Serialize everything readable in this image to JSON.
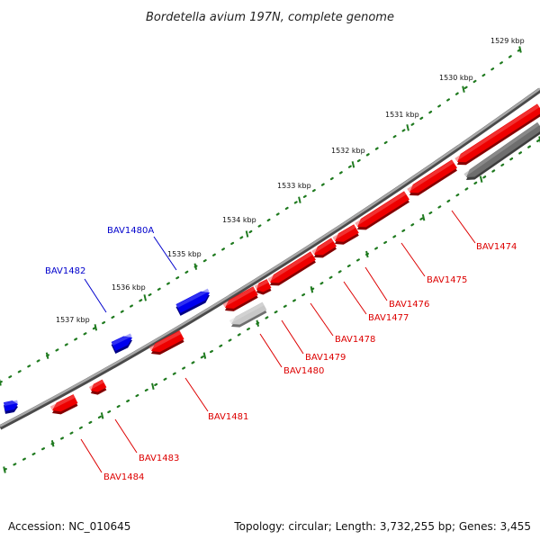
{
  "title": "Bordetella avium 197N, complete genome",
  "footer": {
    "accession": "Accession: NC_010645",
    "summary": "Topology: circular; Length: 3,732,255 bp; Genes: 3,455"
  },
  "colors": {
    "forward_gene": "#0000ee",
    "reverse_gene": "#ee0000",
    "other_gene_light": "#c8c8c8",
    "other_gene_dark": "#6e6e6e",
    "backbone": "#8a8a8a",
    "ticks": "#1f7a1f",
    "forward_label": "#0000cc",
    "reverse_label": "#dd0000"
  },
  "scale": {
    "ticks": [
      {
        "label": "1529 kbp"
      },
      {
        "label": "1530 kbp"
      },
      {
        "label": "1531 kbp"
      },
      {
        "label": "1532 kbp"
      },
      {
        "label": "1533 kbp"
      },
      {
        "label": "1534 kbp"
      },
      {
        "label": "1535 kbp"
      },
      {
        "label": "1536 kbp"
      },
      {
        "label": "1537 kbp"
      }
    ]
  },
  "genes": [
    {
      "label": "BAV1474",
      "strand": "reverse"
    },
    {
      "label": "BAV1475",
      "strand": "reverse"
    },
    {
      "label": "BAV1476",
      "strand": "reverse"
    },
    {
      "label": "BAV1477",
      "strand": "reverse"
    },
    {
      "label": "BAV1478",
      "strand": "reverse"
    },
    {
      "label": "BAV1479",
      "strand": "reverse"
    },
    {
      "label": "BAV1480",
      "strand": "reverse"
    },
    {
      "label": "BAV1480A",
      "strand": "forward"
    },
    {
      "label": "BAV1481",
      "strand": "reverse"
    },
    {
      "label": "BAV1482",
      "strand": "forward"
    },
    {
      "label": "BAV1483",
      "strand": "reverse"
    },
    {
      "label": "BAV1484",
      "strand": "reverse"
    }
  ]
}
